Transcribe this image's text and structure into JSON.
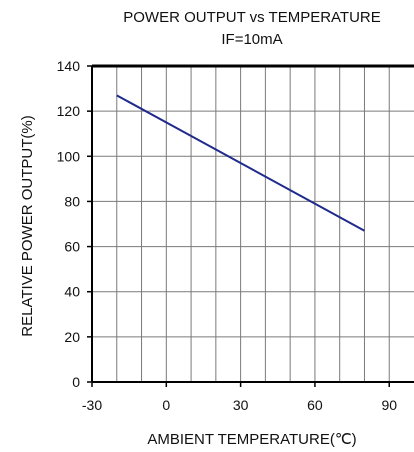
{
  "chart_data": {
    "type": "line",
    "title": "POWER OUTPUT vs TEMPERATURE",
    "subtitle": "IF=10mA",
    "xlabel": "AMBIENT TEMPERATURE(℃)",
    "ylabel": "RELATIVE POWER OUTPUT(%)",
    "xlim": [
      -30,
      100
    ],
    "ylim": [
      0,
      140
    ],
    "x_ticks": [
      -30,
      0,
      30,
      60,
      90
    ],
    "y_ticks": [
      0,
      20,
      40,
      60,
      80,
      100,
      120,
      140
    ],
    "grid": true,
    "series": [
      {
        "x": [
          -20,
          80
        ],
        "y": [
          127,
          67
        ],
        "color": "#1f2a8c"
      }
    ]
  },
  "colors": {
    "line": "#1f2a8c",
    "grid": "#7a7a7a",
    "axis": "#000000"
  }
}
